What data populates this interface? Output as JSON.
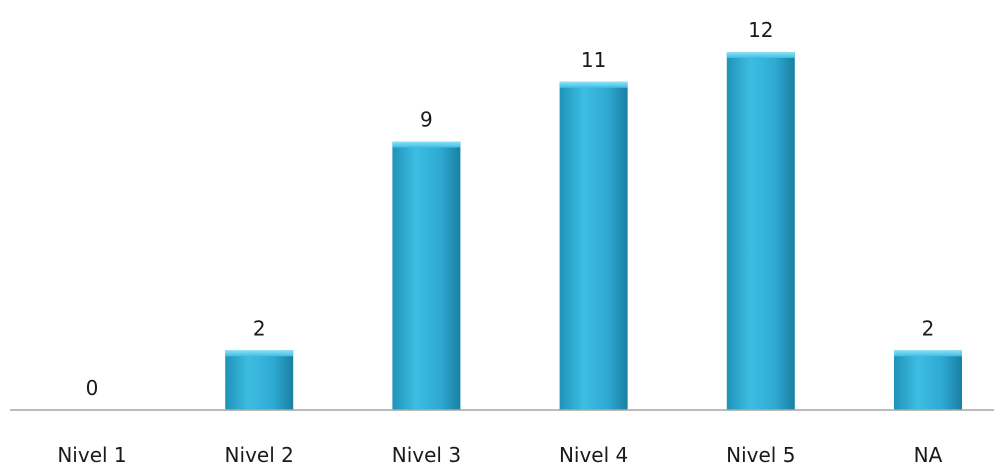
{
  "chart_data": {
    "type": "bar",
    "categories": [
      "Nivel 1",
      "Nivel 2",
      "Nivel 3",
      "Nivel 4",
      "Nivel 5",
      "NA"
    ],
    "values": [
      0,
      2,
      9,
      11,
      12,
      2
    ],
    "data_labels": [
      "0",
      "2",
      "9",
      "11",
      "12",
      "2"
    ],
    "title": "",
    "xlabel": "",
    "ylabel": "",
    "ylim": [
      0,
      12
    ],
    "grid": false,
    "legend": "none",
    "bar_color": "#31B0D5"
  }
}
